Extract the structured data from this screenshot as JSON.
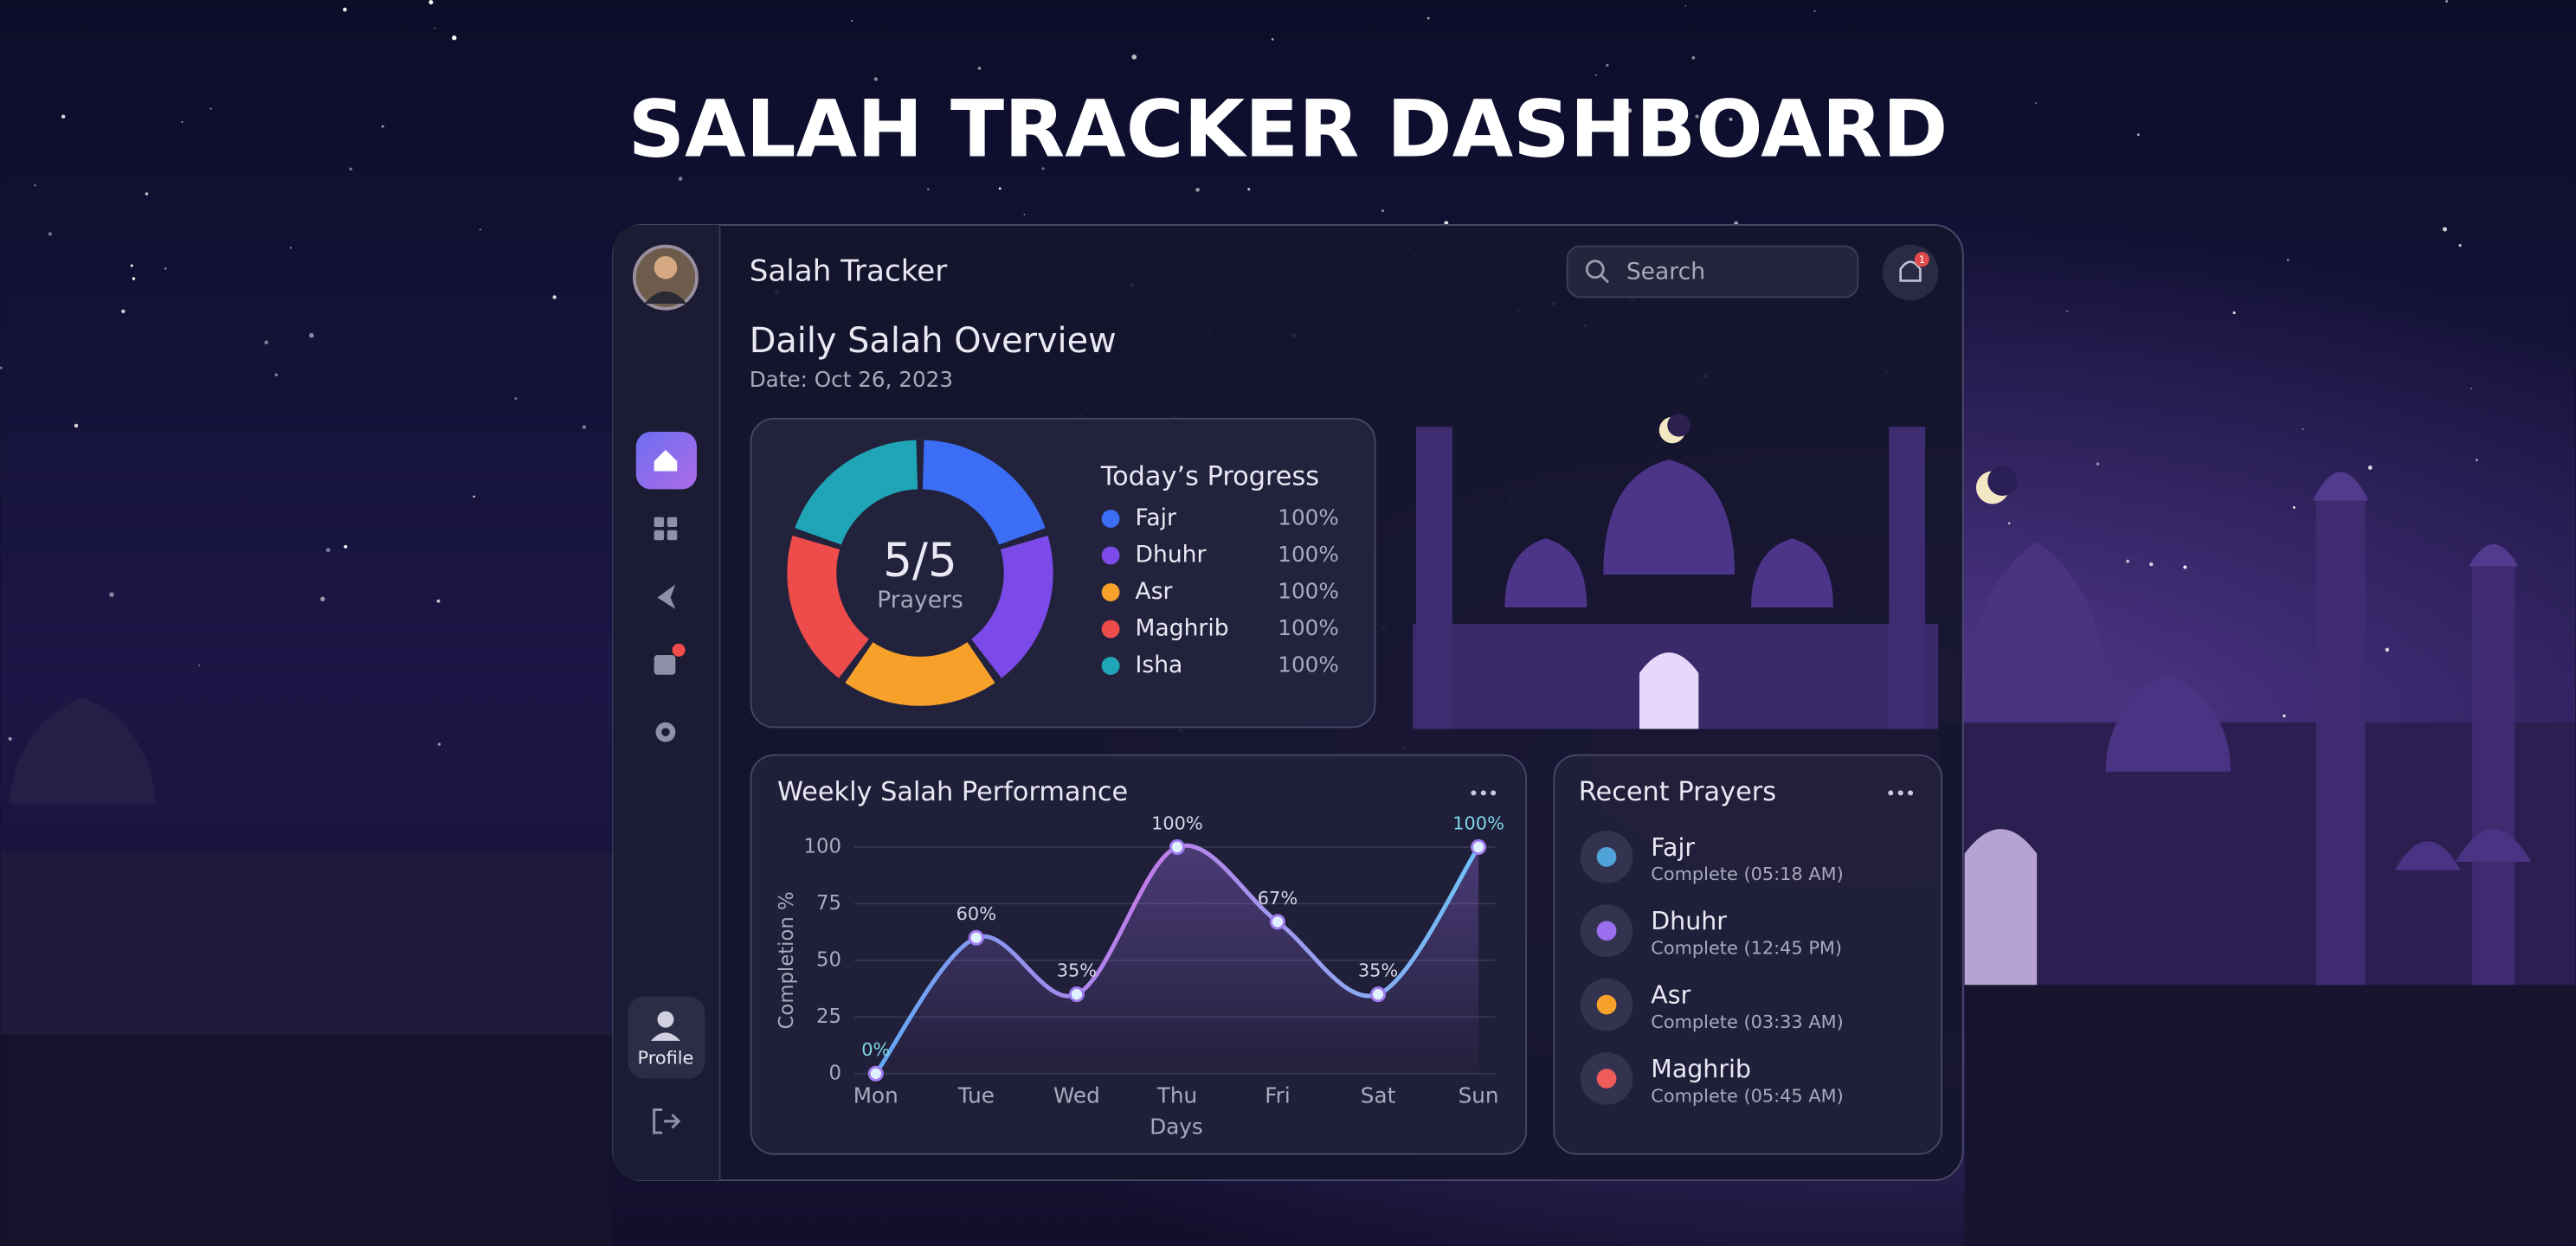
{
  "page_title": "SALAH TRACKER DASHBOARD",
  "header": {
    "app_name": "Salah Tracker",
    "search_placeholder": "Search",
    "notification_count": "1"
  },
  "sidebar": {
    "profile_label": "Profile"
  },
  "overview": {
    "title": "Daily Salah Overview",
    "date": "Date: Oct 26, 2023"
  },
  "chart_data": [
    {
      "type": "donut",
      "title": "Today’s Progress",
      "center_value": "5/5",
      "center_label": "Prayers",
      "categories": [
        "Fajr",
        "Dhuhr",
        "Asr",
        "Maghrib",
        "Isha"
      ],
      "values": [
        100,
        100,
        100,
        100,
        100
      ],
      "value_labels": [
        "100%",
        "100%",
        "100%",
        "100%",
        "100%"
      ],
      "colors": [
        "#3b6ef5",
        "#7b4ae8",
        "#f7a12b",
        "#ee4b4b",
        "#1fa5b5"
      ]
    },
    {
      "type": "line",
      "title": "Weekly Salah Performance",
      "x_label": "Days",
      "y_label": "Completion %",
      "categories": [
        "Mon",
        "Tue",
        "Wed",
        "Thu",
        "Fri",
        "Sat",
        "Sun"
      ],
      "values": [
        0,
        60,
        35,
        100,
        67,
        35,
        100
      ],
      "value_labels": [
        "0%",
        "60%",
        "35%",
        "100%",
        "67%",
        "35%",
        "100%"
      ],
      "color": "#a07cf0",
      "ylim": [
        0,
        100
      ],
      "yticks": [
        0,
        25,
        50,
        75,
        100
      ],
      "grid": true
    }
  ],
  "recent_prayers": {
    "title": "Recent Prayers",
    "items": [
      {
        "name": "Fajr",
        "status": "Complete (05:18 AM)"
      },
      {
        "name": "Dhuhr",
        "status": "Complete (12:45 PM)"
      },
      {
        "name": "Asr",
        "status": "Complete (03:33 AM)"
      },
      {
        "name": "Maghrib",
        "status": "Complete (05:45 AM)"
      }
    ]
  }
}
